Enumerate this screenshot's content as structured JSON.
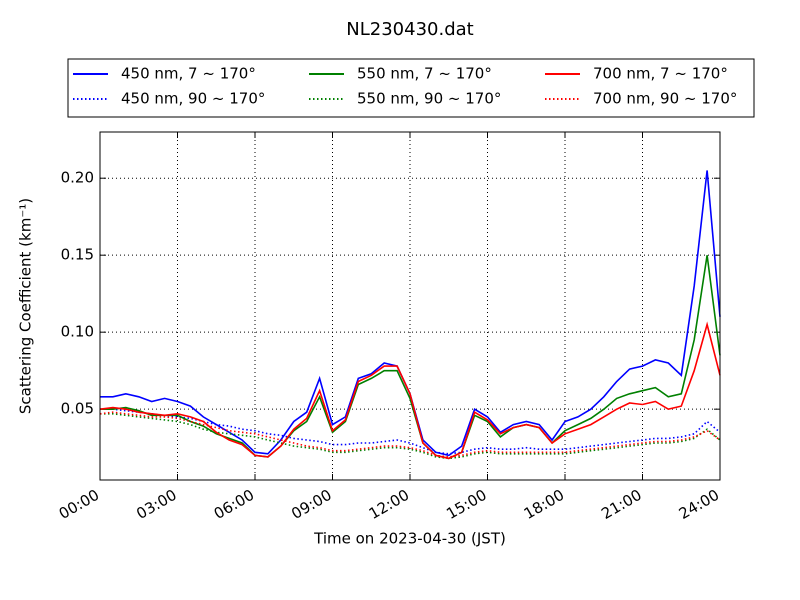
{
  "chart_data": {
    "type": "line",
    "title": "NL230430.dat",
    "xlabel": "Time on 2023-04-30 (JST)",
    "ylabel": "Scattering Coefficient (km⁻¹)",
    "x": [
      0,
      0.5,
      1,
      1.5,
      2,
      2.5,
      3,
      3.5,
      4,
      4.5,
      5,
      5.5,
      6,
      6.5,
      7,
      7.5,
      8,
      8.5,
      9,
      9.5,
      10,
      10.5,
      11,
      11.5,
      12,
      12.5,
      13,
      13.5,
      14,
      14.5,
      15,
      15.5,
      16,
      16.5,
      17,
      17.5,
      18,
      18.5,
      19,
      19.5,
      20,
      20.5,
      21,
      21.5,
      22,
      22.5,
      23,
      23.5,
      24
    ],
    "xlim": [
      0,
      24
    ],
    "xticks": [
      {
        "value": 0,
        "label": "00:00"
      },
      {
        "value": 3,
        "label": "03:00"
      },
      {
        "value": 6,
        "label": "06:00"
      },
      {
        "value": 9,
        "label": "09:00"
      },
      {
        "value": 12,
        "label": "12:00"
      },
      {
        "value": 15,
        "label": "15:00"
      },
      {
        "value": 18,
        "label": "18:00"
      },
      {
        "value": 21,
        "label": "21:00"
      },
      {
        "value": 24,
        "label": "24:00"
      }
    ],
    "ylim": [
      0.004,
      0.23
    ],
    "yticks": [
      0.05,
      {
        "value": 0.1,
        "label": "0.10"
      },
      0.15,
      {
        "value": 0.2,
        "label": "0.20"
      }
    ],
    "grid": true,
    "legend": "top",
    "series": [
      {
        "name": "450 nm, 7 ~ 170°",
        "color": "#0000ff",
        "linestyle": "solid",
        "values": [
          0.058,
          0.058,
          0.06,
          0.058,
          0.055,
          0.057,
          0.055,
          0.052,
          0.045,
          0.04,
          0.035,
          0.03,
          0.022,
          0.021,
          0.03,
          0.042,
          0.048,
          0.07,
          0.04,
          0.045,
          0.07,
          0.073,
          0.08,
          0.078,
          0.06,
          0.03,
          0.022,
          0.02,
          0.026,
          0.05,
          0.045,
          0.035,
          0.04,
          0.042,
          0.04,
          0.03,
          0.042,
          0.045,
          0.05,
          0.058,
          0.068,
          0.076,
          0.078,
          0.082,
          0.08,
          0.072,
          0.13,
          0.205,
          0.11
        ]
      },
      {
        "name": "450 nm, 90 ~ 170°",
        "color": "#0000ff",
        "linestyle": "dotted",
        "values": [
          0.05,
          0.05,
          0.049,
          0.048,
          0.047,
          0.046,
          0.045,
          0.044,
          0.042,
          0.04,
          0.039,
          0.037,
          0.036,
          0.034,
          0.033,
          0.031,
          0.03,
          0.029,
          0.027,
          0.027,
          0.028,
          0.028,
          0.029,
          0.03,
          0.028,
          0.025,
          0.022,
          0.021,
          0.022,
          0.024,
          0.025,
          0.024,
          0.024,
          0.025,
          0.024,
          0.024,
          0.024,
          0.025,
          0.026,
          0.027,
          0.028,
          0.029,
          0.03,
          0.031,
          0.031,
          0.032,
          0.034,
          0.042,
          0.035
        ]
      },
      {
        "name": "550 nm, 7 ~ 170°",
        "color": "#008000",
        "linestyle": "solid",
        "values": [
          0.05,
          0.05,
          0.051,
          0.049,
          0.046,
          0.046,
          0.046,
          0.042,
          0.039,
          0.034,
          0.031,
          0.028,
          0.02,
          0.019,
          0.026,
          0.036,
          0.042,
          0.058,
          0.035,
          0.042,
          0.066,
          0.07,
          0.075,
          0.075,
          0.057,
          0.028,
          0.02,
          0.018,
          0.022,
          0.046,
          0.042,
          0.032,
          0.038,
          0.04,
          0.038,
          0.028,
          0.036,
          0.04,
          0.044,
          0.05,
          0.057,
          0.06,
          0.062,
          0.064,
          0.058,
          0.06,
          0.095,
          0.15,
          0.085
        ]
      },
      {
        "name": "550 nm, 90 ~ 170°",
        "color": "#008000",
        "linestyle": "dotted",
        "values": [
          0.047,
          0.047,
          0.046,
          0.045,
          0.044,
          0.043,
          0.042,
          0.04,
          0.037,
          0.035,
          0.034,
          0.033,
          0.032,
          0.03,
          0.028,
          0.026,
          0.025,
          0.024,
          0.022,
          0.022,
          0.023,
          0.024,
          0.025,
          0.025,
          0.024,
          0.022,
          0.019,
          0.018,
          0.019,
          0.021,
          0.022,
          0.021,
          0.021,
          0.021,
          0.021,
          0.021,
          0.021,
          0.022,
          0.023,
          0.024,
          0.025,
          0.026,
          0.027,
          0.028,
          0.028,
          0.029,
          0.031,
          0.037,
          0.03
        ]
      },
      {
        "name": "700 nm, 7 ~ 170°",
        "color": "#ff0000",
        "linestyle": "solid",
        "values": [
          0.05,
          0.051,
          0.05,
          0.048,
          0.047,
          0.046,
          0.047,
          0.045,
          0.042,
          0.035,
          0.03,
          0.027,
          0.02,
          0.019,
          0.026,
          0.037,
          0.044,
          0.062,
          0.036,
          0.043,
          0.068,
          0.072,
          0.078,
          0.078,
          0.06,
          0.028,
          0.02,
          0.018,
          0.022,
          0.048,
          0.043,
          0.034,
          0.038,
          0.04,
          0.038,
          0.028,
          0.034,
          0.037,
          0.04,
          0.045,
          0.05,
          0.054,
          0.053,
          0.055,
          0.05,
          0.052,
          0.075,
          0.105,
          0.072
        ]
      },
      {
        "name": "700 nm, 90 ~ 170°",
        "color": "#ff0000",
        "linestyle": "dotted",
        "values": [
          0.047,
          0.048,
          0.047,
          0.046,
          0.045,
          0.045,
          0.044,
          0.042,
          0.04,
          0.038,
          0.036,
          0.035,
          0.034,
          0.032,
          0.03,
          0.028,
          0.026,
          0.025,
          0.023,
          0.023,
          0.024,
          0.025,
          0.026,
          0.026,
          0.025,
          0.023,
          0.02,
          0.019,
          0.02,
          0.022,
          0.023,
          0.022,
          0.022,
          0.022,
          0.022,
          0.022,
          0.022,
          0.023,
          0.024,
          0.025,
          0.026,
          0.027,
          0.028,
          0.029,
          0.029,
          0.03,
          0.032,
          0.036,
          0.03
        ]
      }
    ]
  }
}
